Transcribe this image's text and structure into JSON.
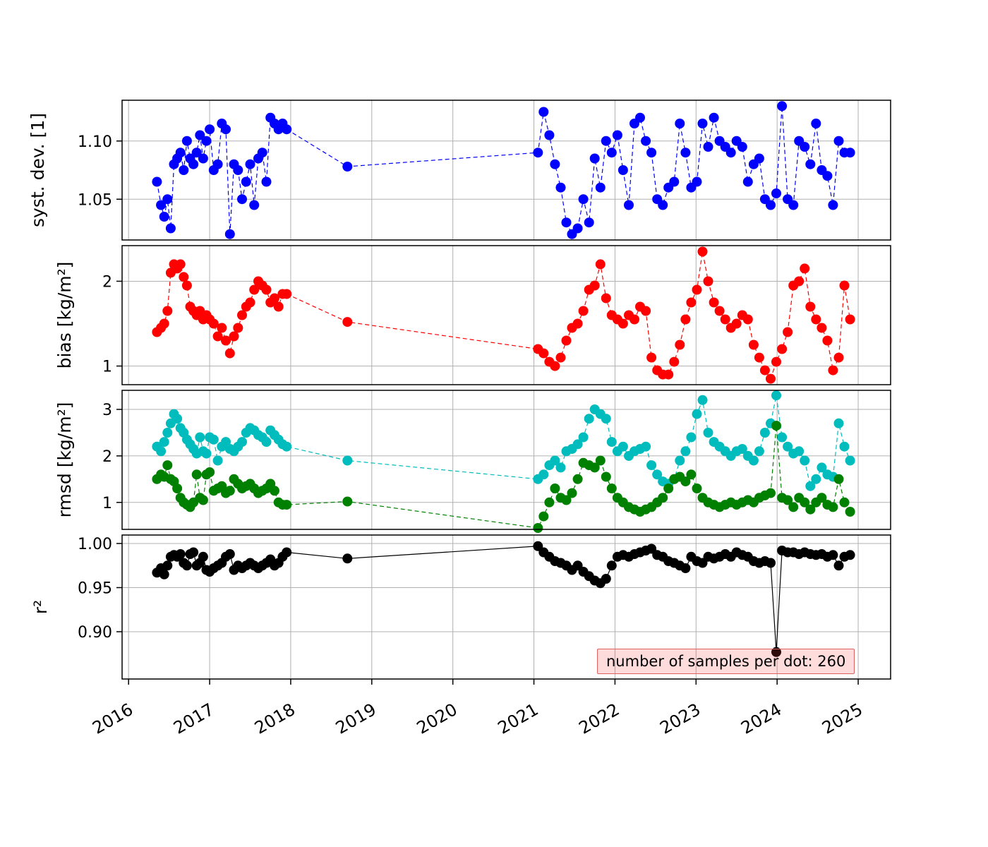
{
  "chart_data": {
    "type": "scatter",
    "title": "",
    "x_ticks": [
      2016,
      2017,
      2018,
      2019,
      2020,
      2021,
      2022,
      2023,
      2024,
      2025
    ],
    "x_lim": [
      2015.92,
      2025.4
    ],
    "grid": true,
    "x_years": [
      2016.35,
      2016.4,
      2016.44,
      2016.48,
      2016.52,
      2016.56,
      2016.6,
      2016.64,
      2016.68,
      2016.72,
      2016.76,
      2016.8,
      2016.84,
      2016.88,
      2016.92,
      2016.96,
      2017.0,
      2017.05,
      2017.1,
      2017.15,
      2017.2,
      2017.25,
      2017.3,
      2017.35,
      2017.4,
      2017.45,
      2017.5,
      2017.55,
      2017.6,
      2017.65,
      2017.7,
      2017.75,
      2017.8,
      2017.85,
      2017.9,
      2017.95,
      2018.7,
      2021.05,
      2021.12,
      2021.19,
      2021.26,
      2021.33,
      2021.4,
      2021.47,
      2021.54,
      2021.61,
      2021.68,
      2021.75,
      2021.82,
      2021.89,
      2021.96,
      2022.03,
      2022.1,
      2022.17,
      2022.24,
      2022.31,
      2022.38,
      2022.45,
      2022.52,
      2022.59,
      2022.66,
      2022.73,
      2022.8,
      2022.87,
      2022.94,
      2023.01,
      2023.08,
      2023.15,
      2023.22,
      2023.29,
      2023.36,
      2023.43,
      2023.5,
      2023.57,
      2023.64,
      2023.71,
      2023.78,
      2023.85,
      2023.92,
      2023.99,
      2024.06,
      2024.13,
      2024.2,
      2024.27,
      2024.34,
      2024.41,
      2024.48,
      2024.55,
      2024.62,
      2024.69,
      2024.76,
      2024.83,
      2024.9
    ],
    "panels": [
      {
        "id": "syst-dev",
        "ylabel": "syst. dev. [1]",
        "ylim": [
          1.015,
          1.135
        ],
        "yticks": [
          {
            "value": 1.05,
            "label": "1.05"
          },
          {
            "value": 1.1,
            "label": "1.10"
          }
        ],
        "series": [
          {
            "id": "syst-dev",
            "color": "#0000ff",
            "line": "dashed",
            "y": [
              1.065,
              1.045,
              1.035,
              1.05,
              1.025,
              1.08,
              1.085,
              1.09,
              1.075,
              1.1,
              1.085,
              1.08,
              1.09,
              1.105,
              1.085,
              1.1,
              1.11,
              1.075,
              1.08,
              1.115,
              1.11,
              1.02,
              1.08,
              1.075,
              1.05,
              1.065,
              1.08,
              1.045,
              1.085,
              1.09,
              1.065,
              1.12,
              1.115,
              1.11,
              1.115,
              1.11,
              1.078,
              1.09,
              1.125,
              1.105,
              1.08,
              1.06,
              1.03,
              1.02,
              1.025,
              1.05,
              1.03,
              1.085,
              1.06,
              1.1,
              1.09,
              1.105,
              1.075,
              1.045,
              1.115,
              1.12,
              1.1,
              1.09,
              1.05,
              1.045,
              1.06,
              1.065,
              1.115,
              1.09,
              1.06,
              1.065,
              1.115,
              1.095,
              1.12,
              1.1,
              1.095,
              1.09,
              1.1,
              1.095,
              1.065,
              1.08,
              1.085,
              1.05,
              1.045,
              1.055,
              1.13,
              1.05,
              1.045,
              1.1,
              1.095,
              1.08,
              1.115,
              1.075,
              1.07,
              1.045,
              1.1,
              1.09,
              1.09
            ]
          }
        ]
      },
      {
        "id": "bias",
        "ylabel": "bias [kg/m²]",
        "ylim": [
          0.78,
          2.42
        ],
        "yticks": [
          {
            "value": 1,
            "label": "1"
          },
          {
            "value": 2,
            "label": "2"
          }
        ],
        "series": [
          {
            "id": "bias",
            "color": "#ff0000",
            "line": "dashed",
            "y": [
              1.4,
              1.45,
              1.5,
              1.65,
              2.1,
              2.2,
              2.15,
              2.2,
              2.05,
              1.95,
              1.7,
              1.65,
              1.6,
              1.65,
              1.55,
              1.6,
              1.55,
              1.5,
              1.35,
              1.45,
              1.3,
              1.15,
              1.35,
              1.45,
              1.6,
              1.7,
              1.75,
              1.9,
              2.0,
              1.95,
              1.9,
              1.75,
              1.8,
              1.7,
              1.85,
              1.85,
              1.52,
              1.2,
              1.15,
              1.05,
              1.0,
              1.1,
              1.3,
              1.45,
              1.5,
              1.65,
              1.9,
              1.95,
              2.2,
              1.8,
              1.6,
              1.55,
              1.5,
              1.6,
              1.55,
              1.7,
              1.65,
              1.1,
              0.95,
              0.9,
              0.9,
              1.05,
              1.25,
              1.55,
              1.75,
              1.9,
              2.35,
              2.0,
              1.75,
              1.65,
              1.55,
              1.45,
              1.5,
              1.6,
              1.55,
              1.25,
              1.1,
              0.95,
              0.85,
              1.05,
              1.2,
              1.4,
              1.95,
              2.0,
              2.15,
              1.7,
              1.55,
              1.45,
              1.3,
              0.95,
              1.1,
              1.95,
              1.55
            ]
          }
        ]
      },
      {
        "id": "rmsd",
        "ylabel": "rmsd [kg/m²]",
        "ylim": [
          0.42,
          3.41
        ],
        "yticks": [
          {
            "value": 1,
            "label": "1"
          },
          {
            "value": 2,
            "label": "2"
          },
          {
            "value": 3,
            "label": "3"
          }
        ],
        "series": [
          {
            "id": "rmsd-cyan",
            "color": "#00bcbc",
            "line": "dashed",
            "y": [
              2.2,
              2.1,
              2.3,
              2.5,
              2.7,
              2.9,
              2.8,
              2.6,
              2.5,
              2.35,
              2.25,
              2.15,
              2.05,
              2.4,
              2.1,
              2.05,
              2.4,
              2.35,
              1.9,
              2.2,
              2.3,
              2.15,
              2.1,
              2.2,
              2.3,
              2.5,
              2.6,
              2.55,
              2.45,
              2.4,
              2.3,
              2.55,
              2.45,
              2.35,
              2.25,
              2.2,
              1.9,
              1.5,
              1.6,
              1.8,
              1.9,
              1.75,
              2.1,
              2.15,
              2.25,
              2.4,
              2.8,
              3.0,
              2.9,
              2.8,
              2.3,
              2.1,
              2.2,
              2.0,
              2.1,
              2.15,
              2.2,
              1.8,
              1.6,
              1.45,
              1.4,
              1.5,
              1.9,
              2.1,
              2.4,
              2.9,
              3.2,
              2.5,
              2.3,
              2.2,
              2.1,
              2.0,
              2.1,
              2.15,
              2.0,
              1.9,
              2.1,
              2.5,
              2.7,
              3.3,
              2.4,
              2.2,
              2.05,
              2.1,
              1.9,
              1.35,
              1.5,
              1.75,
              1.6,
              1.55,
              2.7,
              2.2,
              1.9
            ]
          },
          {
            "id": "rmsd-green",
            "color": "#008000",
            "line": "dashed",
            "y": [
              1.5,
              1.6,
              1.55,
              1.8,
              1.5,
              1.45,
              1.3,
              1.1,
              1.0,
              0.95,
              0.9,
              1.0,
              1.6,
              1.1,
              1.05,
              1.6,
              1.65,
              1.25,
              1.3,
              1.35,
              1.2,
              1.25,
              1.5,
              1.4,
              1.3,
              1.35,
              1.4,
              1.3,
              1.2,
              1.25,
              1.3,
              1.4,
              1.25,
              1.0,
              0.95,
              0.95,
              1.02,
              0.45,
              0.7,
              1.0,
              1.3,
              1.1,
              1.05,
              1.2,
              1.5,
              1.85,
              1.8,
              1.75,
              1.9,
              1.55,
              1.3,
              1.1,
              1.0,
              0.9,
              0.85,
              0.8,
              0.85,
              0.9,
              1.0,
              1.1,
              1.3,
              1.5,
              1.55,
              1.45,
              1.6,
              1.3,
              1.1,
              1.0,
              0.95,
              0.9,
              0.95,
              1.0,
              0.95,
              1.0,
              1.05,
              1.0,
              1.1,
              1.15,
              1.2,
              2.65,
              1.1,
              1.05,
              0.9,
              1.1,
              1.0,
              0.85,
              1.0,
              1.1,
              0.95,
              0.9,
              1.5,
              1.0,
              0.8
            ]
          }
        ]
      },
      {
        "id": "r2",
        "ylabel": "r²",
        "ylim": [
          0.8464,
          1.0096
        ],
        "yticks": [
          {
            "value": 0.9,
            "label": "0.90"
          },
          {
            "value": 0.95,
            "label": "0.95"
          },
          {
            "value": 1.0,
            "label": "1.00"
          }
        ],
        "series": [
          {
            "id": "r2",
            "color": "#000000",
            "line": "solid",
            "y": [
              0.967,
              0.972,
              0.965,
              0.975,
              0.985,
              0.987,
              0.985,
              0.988,
              0.978,
              0.975,
              0.988,
              0.99,
              0.975,
              0.978,
              0.985,
              0.97,
              0.968,
              0.972,
              0.975,
              0.978,
              0.985,
              0.988,
              0.97,
              0.975,
              0.972,
              0.975,
              0.978,
              0.975,
              0.972,
              0.975,
              0.978,
              0.982,
              0.975,
              0.978,
              0.985,
              0.99,
              0.983,
              0.997,
              0.99,
              0.985,
              0.98,
              0.978,
              0.975,
              0.97,
              0.975,
              0.968,
              0.963,
              0.958,
              0.955,
              0.96,
              0.975,
              0.985,
              0.987,
              0.985,
              0.988,
              0.99,
              0.992,
              0.994,
              0.987,
              0.985,
              0.98,
              0.978,
              0.975,
              0.972,
              0.985,
              0.98,
              0.978,
              0.985,
              0.983,
              0.985,
              0.988,
              0.985,
              0.99,
              0.987,
              0.985,
              0.98,
              0.978,
              0.98,
              0.978,
              0.877,
              0.992,
              0.99,
              0.99,
              0.988,
              0.99,
              0.988,
              0.987,
              0.988,
              0.985,
              0.987,
              0.975,
              0.985,
              0.987
            ]
          }
        ]
      }
    ],
    "annotation": {
      "text": "number of samples per dot: 260"
    }
  }
}
